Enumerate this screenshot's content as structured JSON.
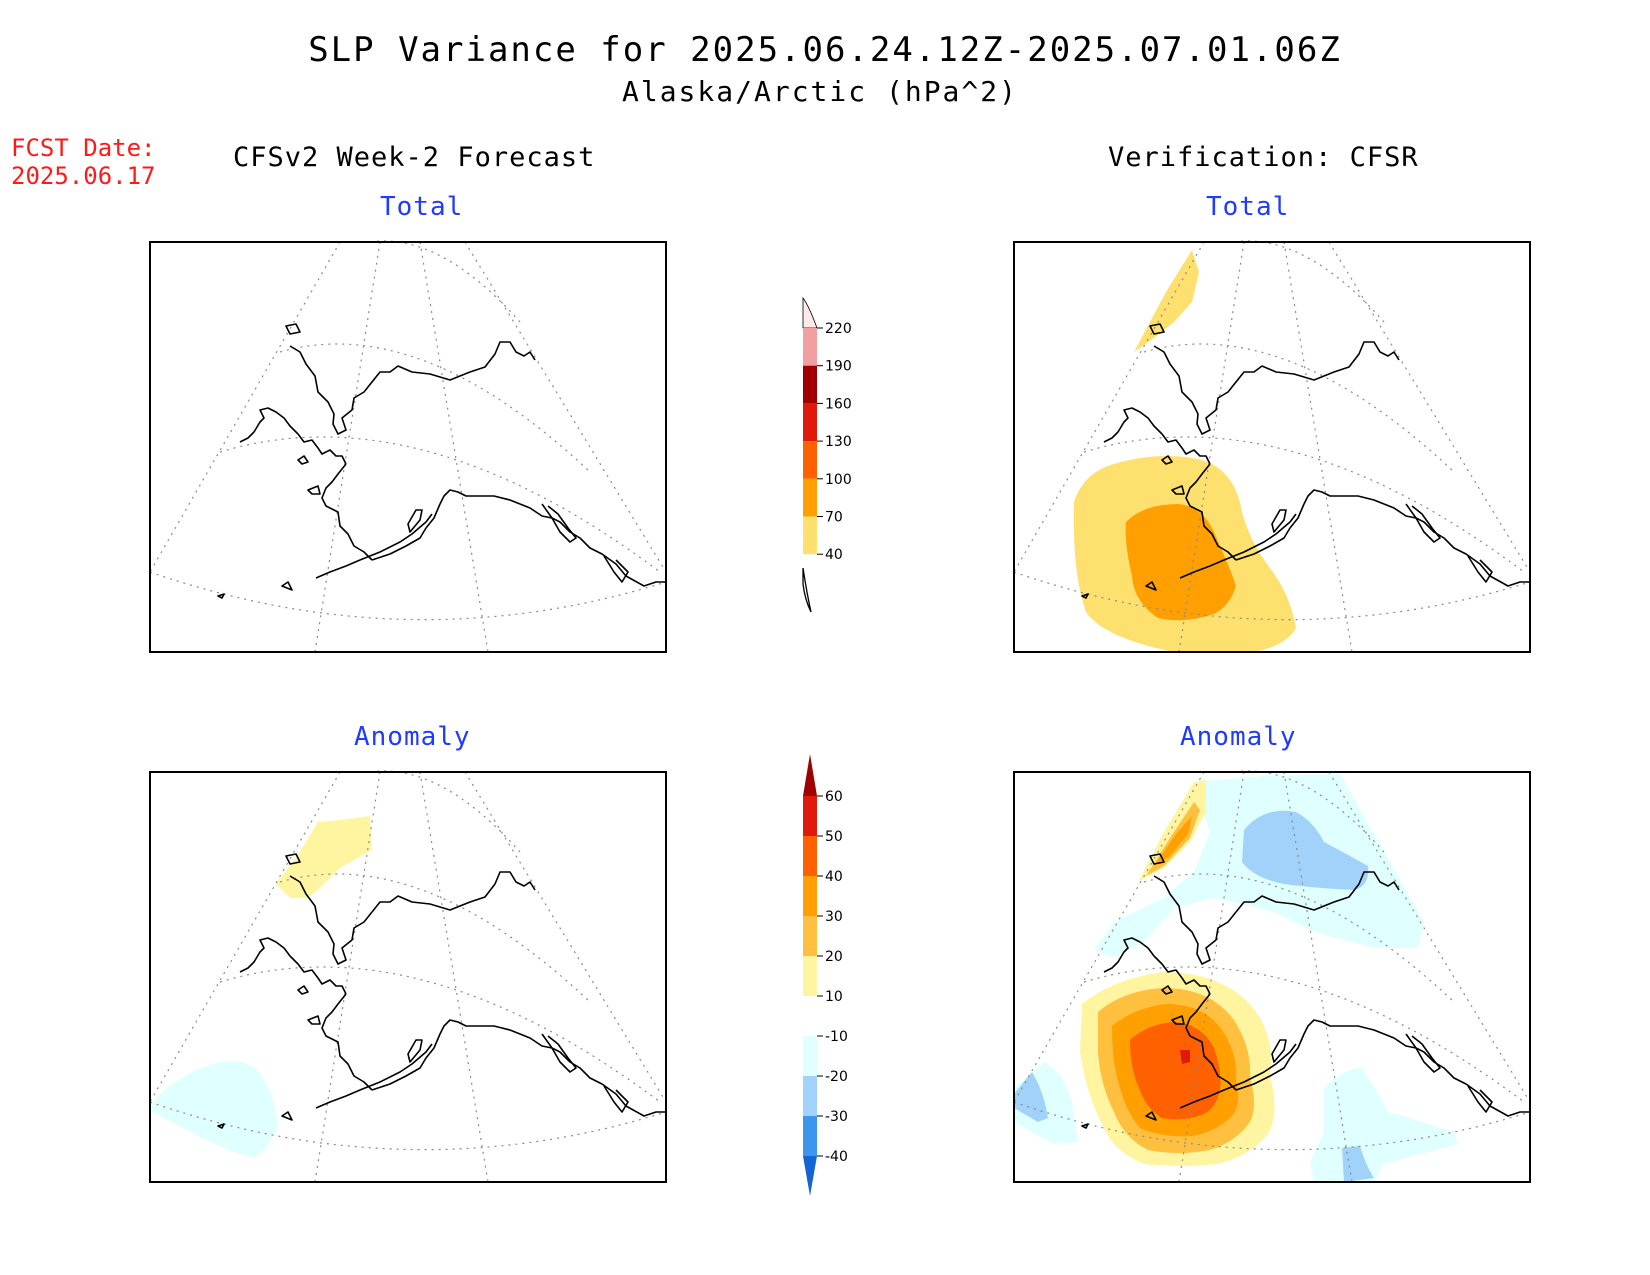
{
  "header": {
    "title": "SLP Variance for 2025.06.24.12Z-2025.07.01.06Z",
    "subtitle": "Alaska/Arctic (hPa^2)"
  },
  "fcst_date": {
    "label": "FCST Date:",
    "value": "2025.06.17"
  },
  "columns": {
    "left": "CFSv2 Week-2 Forecast",
    "right": "Verification: CFSR"
  },
  "panels": {
    "forecast_total": {
      "title": "Total"
    },
    "verification_total": {
      "title": "Total"
    },
    "forecast_anomaly": {
      "title": "Anomaly"
    },
    "verification_anomaly": {
      "title": "Anomaly"
    }
  },
  "colorbars": {
    "total": {
      "labels": [
        "220",
        "190",
        "160",
        "130",
        "100",
        "70",
        "40"
      ],
      "colors": [
        "#fde9e9",
        "#f0a0a0",
        "#a00000",
        "#e01a0a",
        "#ff6000",
        "#ffa000",
        "#fde06e"
      ]
    },
    "anomaly": {
      "labels": [
        "60",
        "50",
        "40",
        "30",
        "20",
        "10",
        "-10",
        "-20",
        "-30",
        "-40"
      ],
      "colors": [
        "#a00000",
        "#e01a0a",
        "#ff6000",
        "#ffa000",
        "#ffc040",
        "#fff5a0",
        "#ffffff",
        "#e0ffff",
        "#a0d2fa",
        "#3c96f0",
        "#1464d2"
      ]
    }
  },
  "contour_colors": {
    "total_40_70": "#fde06e",
    "total_70_100": "#ffa000",
    "anom_10_20": "#fff5a0",
    "anom_20_30": "#ffc040",
    "anom_30_40": "#ffa000",
    "anom_40_50": "#ff6000",
    "anom_50_60": "#e01a0a",
    "anom_neg_10_20": "#e0ffff",
    "anom_neg_20_30": "#a0d2fa"
  }
}
